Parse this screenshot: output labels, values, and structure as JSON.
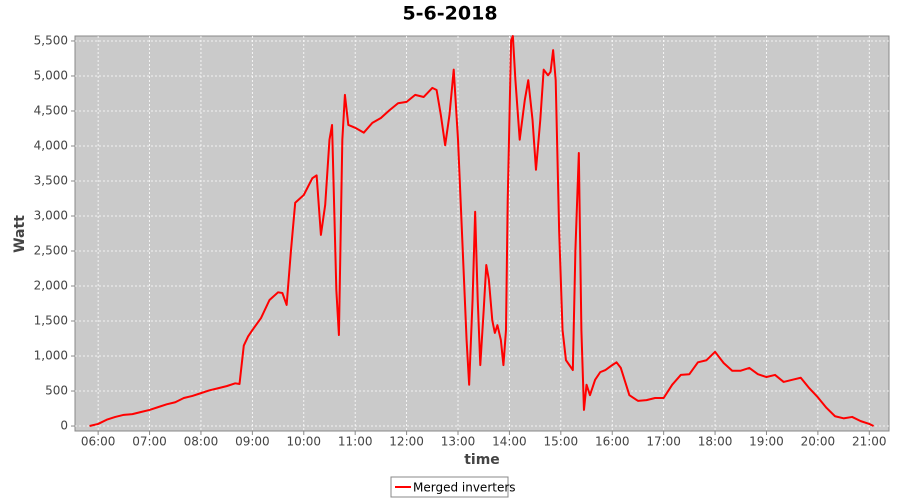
{
  "chart_data": {
    "type": "line",
    "title": "5-6-2018",
    "x_label": "time",
    "y_label": "Watt",
    "x": [
      "05:50",
      "06:00",
      "06:10",
      "06:20",
      "06:30",
      "06:40",
      "06:50",
      "07:00",
      "07:10",
      "07:20",
      "07:30",
      "07:40",
      "07:50",
      "08:00",
      "08:10",
      "08:20",
      "08:30",
      "08:40",
      "08:45",
      "08:50",
      "08:55",
      "09:00",
      "09:10",
      "09:20",
      "09:30",
      "09:35",
      "09:40",
      "09:45",
      "09:50",
      "10:00",
      "10:10",
      "10:15",
      "10:20",
      "10:25",
      "10:30",
      "10:33",
      "10:38",
      "10:41",
      "10:45",
      "10:48",
      "10:52",
      "11:00",
      "11:10",
      "11:20",
      "11:30",
      "11:40",
      "11:50",
      "12:00",
      "12:10",
      "12:20",
      "12:30",
      "12:35",
      "12:40",
      "12:45",
      "12:50",
      "12:55",
      "13:00",
      "13:05",
      "13:10",
      "13:13",
      "13:17",
      "13:20",
      "13:23",
      "13:26",
      "13:30",
      "13:33",
      "13:36",
      "13:40",
      "13:43",
      "13:46",
      "13:50",
      "13:53",
      "13:56",
      "13:58",
      "14:02",
      "14:04",
      "14:07",
      "14:12",
      "14:18",
      "14:22",
      "14:27",
      "14:31",
      "14:36",
      "14:40",
      "14:45",
      "14:48",
      "14:51",
      "14:54",
      "14:58",
      "15:02",
      "15:06",
      "15:10",
      "15:14",
      "15:17",
      "15:21",
      "15:24",
      "15:27",
      "15:30",
      "15:34",
      "15:40",
      "15:46",
      "15:52",
      "16:00",
      "16:05",
      "16:10",
      "16:20",
      "16:30",
      "16:40",
      "16:50",
      "17:00",
      "17:10",
      "17:20",
      "17:30",
      "17:40",
      "17:50",
      "18:00",
      "18:10",
      "18:20",
      "18:30",
      "18:40",
      "18:50",
      "19:00",
      "19:10",
      "19:20",
      "19:30",
      "19:40",
      "19:50",
      "20:00",
      "20:10",
      "20:20",
      "20:30",
      "20:40",
      "20:50",
      "21:00",
      "21:05"
    ],
    "series": [
      {
        "name": "Merged inverters",
        "color": "#ff0000",
        "values": [
          0,
          30,
          90,
          130,
          160,
          170,
          200,
          230,
          270,
          310,
          340,
          400,
          430,
          470,
          510,
          540,
          570,
          610,
          600,
          1150,
          1280,
          1370,
          1540,
          1800,
          1910,
          1900,
          1730,
          2500,
          3190,
          3300,
          3540,
          3580,
          2730,
          3160,
          4090,
          4300,
          1940,
          1300,
          4090,
          4730,
          4300,
          4260,
          4190,
          4330,
          4400,
          4510,
          4610,
          4630,
          4730,
          4700,
          4830,
          4800,
          4440,
          4010,
          4440,
          5090,
          4090,
          2660,
          1230,
          590,
          1800,
          3060,
          1800,
          870,
          1660,
          2300,
          2090,
          1510,
          1330,
          1440,
          1230,
          870,
          1370,
          3230,
          5510,
          5570,
          4940,
          4090,
          4660,
          4940,
          4370,
          3660,
          4370,
          5090,
          5010,
          5060,
          5370,
          4940,
          2800,
          1370,
          940,
          870,
          800,
          2510,
          3900,
          1370,
          230,
          590,
          440,
          660,
          770,
          800,
          870,
          910,
          830,
          440,
          360,
          370,
          400,
          400,
          590,
          730,
          740,
          910,
          940,
          1060,
          900,
          790,
          790,
          830,
          740,
          700,
          730,
          630,
          660,
          690,
          540,
          410,
          260,
          140,
          110,
          130,
          70,
          30,
          0
        ]
      }
    ],
    "xlim": [
      "05:33",
      "21:23"
    ],
    "xticks": [
      "06:00",
      "07:00",
      "08:00",
      "09:00",
      "10:00",
      "11:00",
      "12:00",
      "13:00",
      "14:00",
      "15:00",
      "16:00",
      "17:00",
      "18:00",
      "19:00",
      "20:00",
      "21:00"
    ],
    "ylim": [
      -71,
      5571
    ],
    "yticks": [
      0,
      500,
      {
        "value": 1000,
        "label": "1,000"
      },
      {
        "value": 1500,
        "label": "1,500"
      },
      {
        "value": 2000,
        "label": "2,000"
      },
      {
        "value": 2500,
        "label": "2,500"
      },
      {
        "value": 3000,
        "label": "3,000"
      },
      {
        "value": 3500,
        "label": "3,500"
      },
      {
        "value": 4000,
        "label": "4,000"
      },
      {
        "value": 4500,
        "label": "4,500"
      },
      {
        "value": 5000,
        "label": "5,000"
      },
      {
        "value": 5500,
        "label": "5,500"
      }
    ],
    "grid": true,
    "legend": "bottom"
  }
}
